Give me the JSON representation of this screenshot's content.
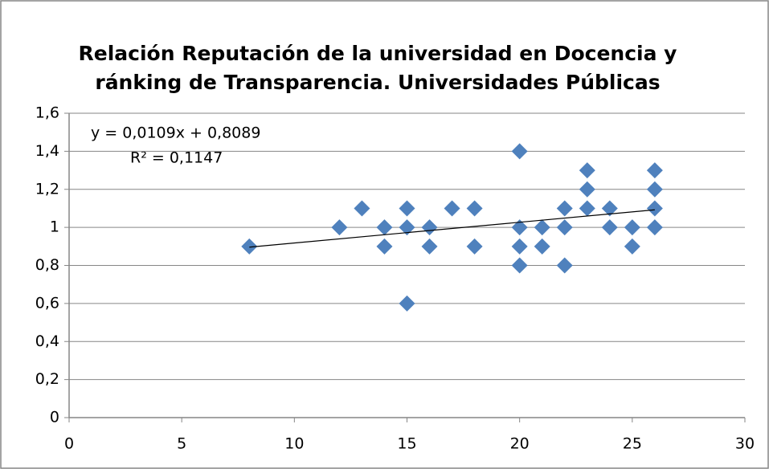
{
  "chart_data": {
    "type": "scatter",
    "title": [
      "Relación Reputación de la universidad en Docencia y",
      "ránking de Transparencia. Universidades Públicas"
    ],
    "annotations": [
      "y = 0,0109x + 0,8089",
      "R² = 0,1147"
    ],
    "series": [
      {
        "color": "#4f81bd",
        "x": [
          8,
          12,
          13,
          14,
          14,
          15,
          15,
          15,
          16,
          16,
          17,
          18,
          18,
          20,
          20,
          20,
          20,
          21,
          21,
          22,
          22,
          22,
          23,
          23,
          23,
          24,
          24,
          25,
          25,
          26,
          26,
          26,
          26
        ],
        "values": [
          0.9,
          1.0,
          1.1,
          1.0,
          0.9,
          1.1,
          1.0,
          0.6,
          1.0,
          0.9,
          1.1,
          1.1,
          0.9,
          1.4,
          1.0,
          0.9,
          0.8,
          1.0,
          0.9,
          1.1,
          1.0,
          0.8,
          1.3,
          1.2,
          1.1,
          1.1,
          1.0,
          1.0,
          0.9,
          1.3,
          1.2,
          1.1,
          1.0
        ]
      }
    ],
    "trendline": {
      "color": "#000000",
      "x": [
        8,
        26
      ],
      "values": [
        0.8961,
        1.0923
      ]
    },
    "xlim": [
      0,
      30
    ],
    "xticks": [
      0,
      5,
      10,
      15,
      20,
      25,
      30
    ],
    "ylim": [
      0,
      1.6
    ],
    "yticks": [
      0,
      {
        "value": 0.2,
        "label": "0,2"
      },
      {
        "value": 0.4,
        "label": "0,4"
      },
      {
        "value": 0.6,
        "label": "0,6"
      },
      {
        "value": 0.8,
        "label": "0,8"
      },
      1,
      {
        "value": 1.2,
        "label": "1,2"
      },
      {
        "value": 1.4,
        "label": "1,4"
      },
      {
        "value": 1.6,
        "label": "1,6"
      }
    ],
    "grid": true
  }
}
